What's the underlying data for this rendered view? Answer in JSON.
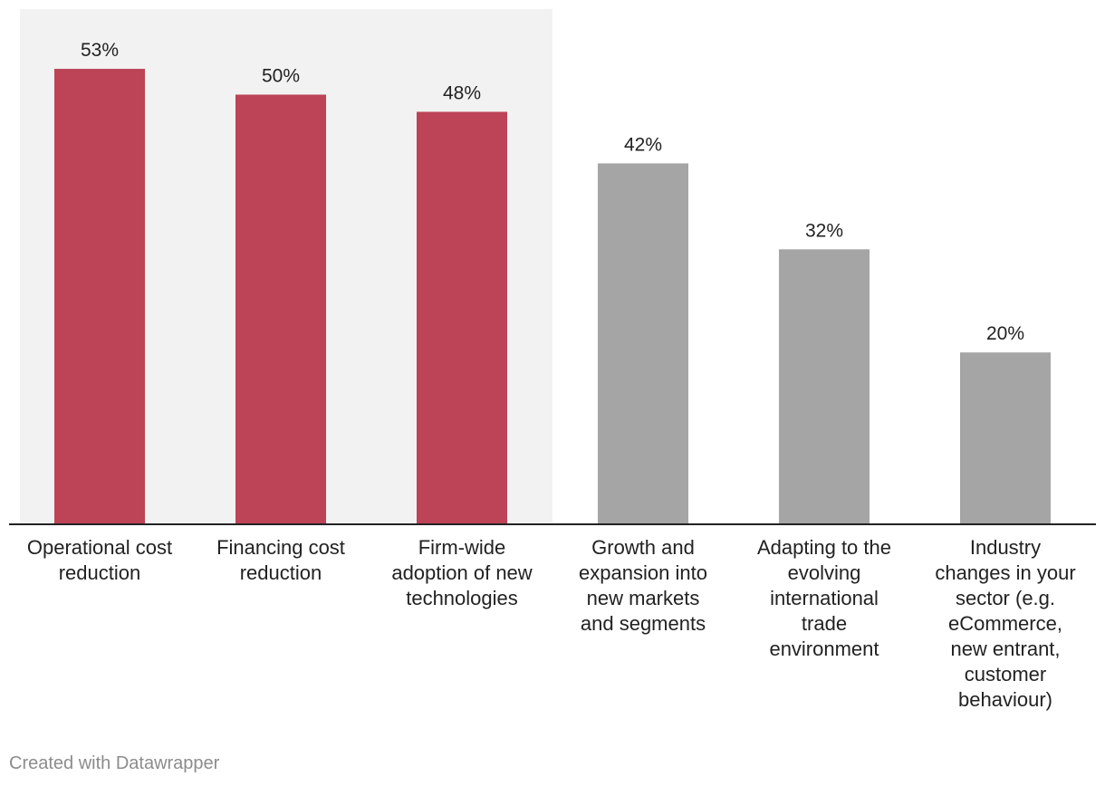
{
  "chart_data": {
    "type": "bar",
    "categories": [
      [
        "Operational cost",
        "reduction"
      ],
      [
        "Financing cost",
        "reduction"
      ],
      [
        "Firm-wide",
        "adoption of new",
        "technologies"
      ],
      [
        "Growth and",
        "expansion into",
        "new markets",
        "and segments"
      ],
      [
        "Adapting to the",
        "evolving",
        "international",
        "trade",
        "environment"
      ],
      [
        "Industry",
        "changes in your",
        "sector (e.g.",
        "eCommerce,",
        "new entrant,",
        "customer",
        "behaviour)"
      ]
    ],
    "values": [
      53,
      50,
      48,
      42,
      32,
      20
    ],
    "value_labels": [
      "53%",
      "50%",
      "48%",
      "42%",
      "32%",
      "20%"
    ],
    "highlighted": [
      true,
      true,
      true,
      false,
      false,
      false
    ],
    "highlight_region": "first three categories",
    "ylim": [
      0,
      55
    ],
    "title": "",
    "xlabel": "",
    "ylabel": "",
    "grid": false
  },
  "colors": {
    "highlight_bar": "#bd4357",
    "normal_bar": "#a5a5a5",
    "highlight_background": "#f2f2f2",
    "axis": "#222222",
    "text": "#222222",
    "credit": "#8c8c8c"
  },
  "footer": {
    "credit": "Created with Datawrapper"
  }
}
